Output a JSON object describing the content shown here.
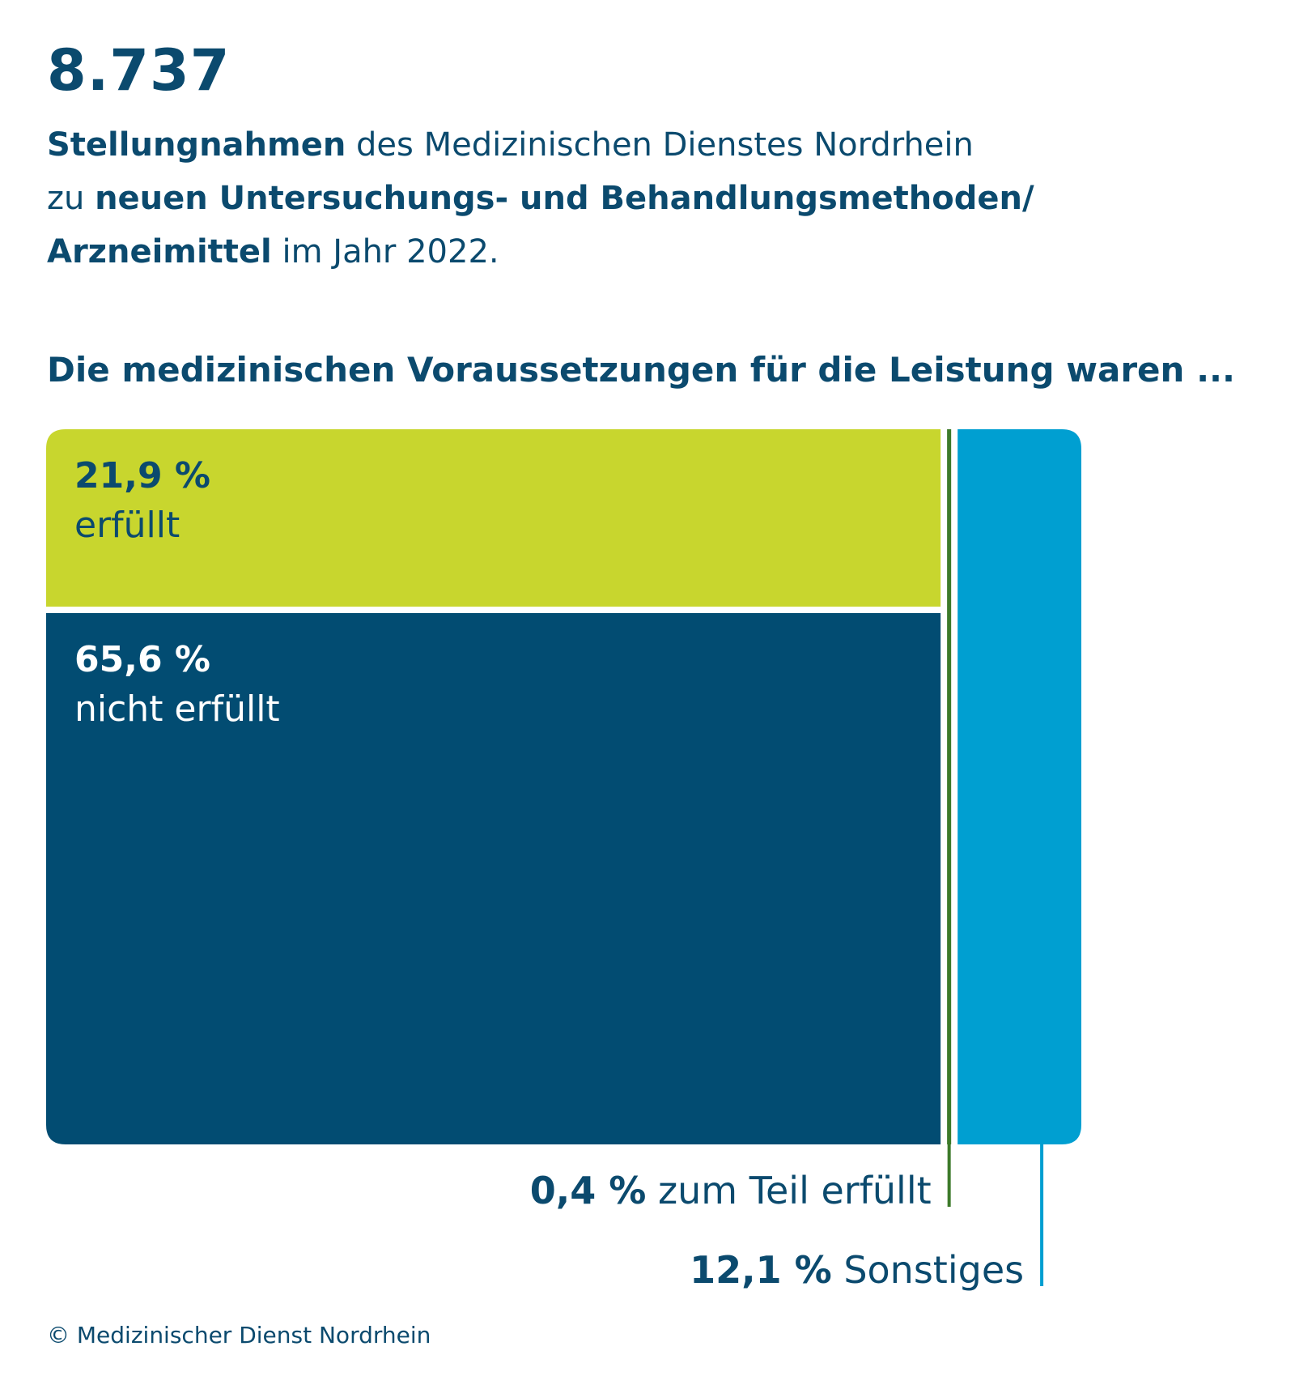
{
  "headline": {
    "number": "8.737",
    "line1_bold": "Stellungnahmen",
    "line1_rest": " des Medizinischen Dienstes Nordrhein",
    "line2_start": "zu ",
    "line2_bold": "neuen Untersuchungs- und Behandlungsmethoden/",
    "line3_bold": "Arzneimittel",
    "line3_rest": " im Jahr 2022."
  },
  "question": "Die medizinischen Voraussetzungen für die Leistung waren ...",
  "colors": {
    "erfuellt": "#c8d62e",
    "nicht_erfuellt": "#024c72",
    "zum_teil": "#3d7a2a",
    "sonstiges": "#009fd1",
    "text_dark": "#0b4a6e",
    "text_white": "#ffffff"
  },
  "chart_data": {
    "type": "bar",
    "layout": "mosaic",
    "unit": "%",
    "categories": [
      "erfüllt",
      "nicht erfüllt",
      "zum Teil erfüllt",
      "Sonstiges"
    ],
    "values": [
      21.9,
      65.6,
      0.4,
      12.1
    ],
    "labels": [
      {
        "value": "21,9 %",
        "text": "erfüllt"
      },
      {
        "value": "65,6 %",
        "text": "nicht erfüllt"
      },
      {
        "value": "0,4 %",
        "text": " zum Teil erfüllt"
      },
      {
        "value": "12,1 %",
        "text": " Sonstiges"
      }
    ],
    "title": "Die medizinischen Voraussetzungen für die Leistung waren ..."
  },
  "footer": {
    "copyright": "© Medizinischer Dienst Nordrhein"
  }
}
